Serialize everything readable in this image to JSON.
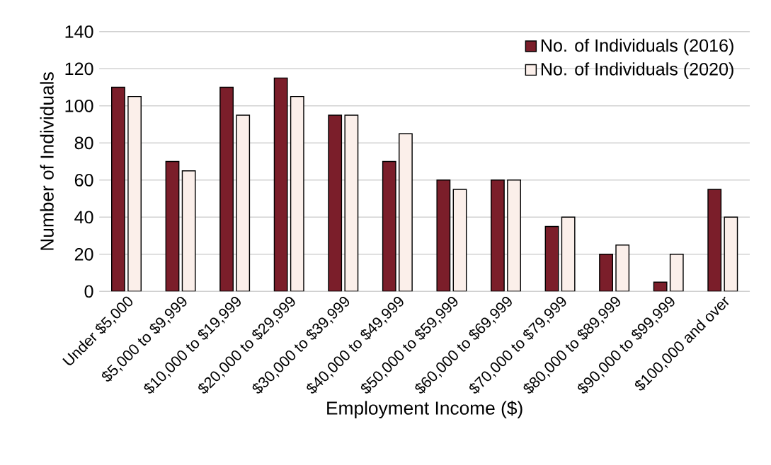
{
  "chart_data": {
    "type": "bar",
    "xlabel": "Employment Income ($)",
    "ylabel": "Number of Individuals",
    "categories": [
      "Under $5,000",
      "$5,000 to $9,999",
      "$10,000 to $19,999",
      "$20,000 to $29,999",
      "$30,000 to $39,999",
      "$40,000 to $49,999",
      "$50,000 to $59,999",
      "$60,000 to $69,999",
      "$70,000 to $79,999",
      "$80,000 to $89,999",
      "$90,000 to $99,999",
      "$100,000 and over"
    ],
    "series": [
      {
        "name": "No. of Individuals (2016)",
        "color": "#7b1e2a",
        "values": [
          110,
          70,
          110,
          115,
          95,
          70,
          60,
          60,
          35,
          20,
          5,
          55
        ]
      },
      {
        "name": "No. of Individuals (2020)",
        "color": "#fbefea",
        "values": [
          105,
          65,
          95,
          105,
          95,
          85,
          55,
          60,
          40,
          25,
          20,
          40
        ]
      }
    ],
    "ylim": [
      0,
      140
    ],
    "yticks": [
      0,
      20,
      40,
      60,
      80,
      100,
      120,
      140
    ],
    "grid": "y",
    "legend": "top right"
  }
}
